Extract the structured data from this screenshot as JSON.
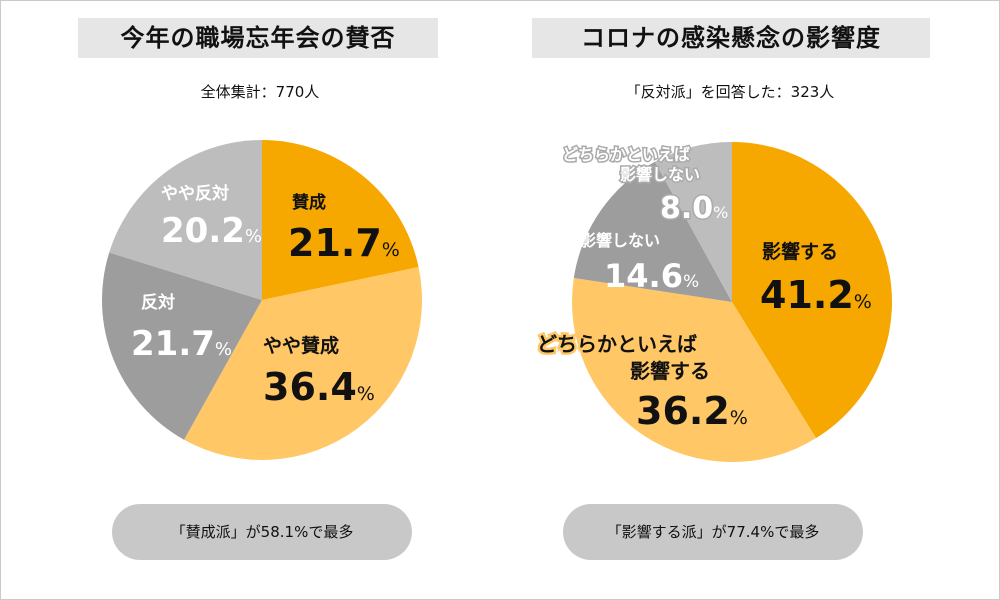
{
  "colors": {
    "dark_orange": "#f6a800",
    "light_orange": "#ffc766",
    "dark_gray": "#9d9d9d",
    "light_gray": "#bdbdbd",
    "title_bg": "#e6e6e6",
    "pill_bg": "#c8c8c8"
  },
  "chart_data": [
    {
      "type": "pie",
      "title": "今年の職場忘年会の賛否",
      "subtitle": "全体集計：770人",
      "summary": "「賛成派」が58.1%で最多",
      "slices": [
        {
          "label": "賛成",
          "value": 21.7
        },
        {
          "label": "やや賛成",
          "value": 36.4
        },
        {
          "label": "反対",
          "value": 21.7
        },
        {
          "label": "やや反対",
          "value": 20.2
        }
      ]
    },
    {
      "type": "pie",
      "title": "コロナの感染懸念の影響度",
      "subtitle": "「反対派」を回答した：323人",
      "summary": "「影響する派」が77.4%で最多",
      "slices": [
        {
          "label": "影響する",
          "value": 41.2
        },
        {
          "label": "どちらかといえば影響する",
          "value": 36.2
        },
        {
          "label": "影響しない",
          "value": 14.6
        },
        {
          "label": "どちらかといえば影響しない",
          "value": 8.0
        }
      ]
    }
  ]
}
